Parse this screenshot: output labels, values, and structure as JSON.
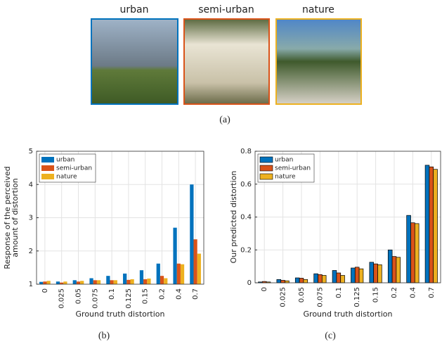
{
  "figure_a": {
    "labels": [
      "urban",
      "semi-urban",
      "nature"
    ],
    "caption": "(a)"
  },
  "chart_data": [
    {
      "type": "bar",
      "caption": "(b)",
      "ylabel": [
        "Response of the perceived",
        "amount of distortion"
      ],
      "xlabel": "Ground truth distortion",
      "categories": [
        "0",
        "0.025",
        "0.05",
        "0.075",
        "0.1",
        "0.125",
        "0.15",
        "0.2",
        "0.4",
        "0.7"
      ],
      "series": [
        {
          "name": "urban",
          "color": "#0072BD",
          "values": [
            1.07,
            1.08,
            1.12,
            1.18,
            1.25,
            1.32,
            1.42,
            1.62,
            2.7,
            4.0
          ]
        },
        {
          "name": "semi-urban",
          "color": "#D95319",
          "values": [
            1.08,
            1.05,
            1.08,
            1.12,
            1.12,
            1.13,
            1.15,
            1.25,
            1.62,
            2.35
          ]
        },
        {
          "name": "nature",
          "color": "#EDB120",
          "values": [
            1.1,
            1.08,
            1.1,
            1.12,
            1.12,
            1.15,
            1.17,
            1.18,
            1.6,
            1.92
          ]
        }
      ],
      "ylim": [
        1,
        5
      ],
      "yticks": [
        1,
        2,
        3,
        4,
        5
      ],
      "grid": true,
      "legend": "upper-left",
      "bar_edges": false
    },
    {
      "type": "bar",
      "caption": "(c)",
      "ylabel": [
        "Our predicted distortion"
      ],
      "xlabel": "Ground truth distortion",
      "categories": [
        "0",
        "0.025",
        "0.05",
        "0.075",
        "0.1",
        "0.125",
        "0.15",
        "0.2",
        "0.4",
        "0.7"
      ],
      "series": [
        {
          "name": "urban",
          "color": "#0072BD",
          "values": [
            0.005,
            0.02,
            0.03,
            0.055,
            0.075,
            0.09,
            0.125,
            0.2,
            0.41,
            0.715
          ]
        },
        {
          "name": "semi-urban",
          "color": "#D95319",
          "values": [
            0.008,
            0.015,
            0.028,
            0.05,
            0.06,
            0.095,
            0.115,
            0.16,
            0.365,
            0.705
          ]
        },
        {
          "name": "nature",
          "color": "#EDB120",
          "values": [
            0.005,
            0.012,
            0.02,
            0.045,
            0.045,
            0.085,
            0.11,
            0.155,
            0.36,
            0.69
          ]
        }
      ],
      "ylim": [
        0,
        0.8
      ],
      "yticks": [
        0,
        0.2,
        0.4,
        0.6,
        0.8
      ],
      "grid": true,
      "legend": "upper-left",
      "bar_edges": true
    }
  ]
}
